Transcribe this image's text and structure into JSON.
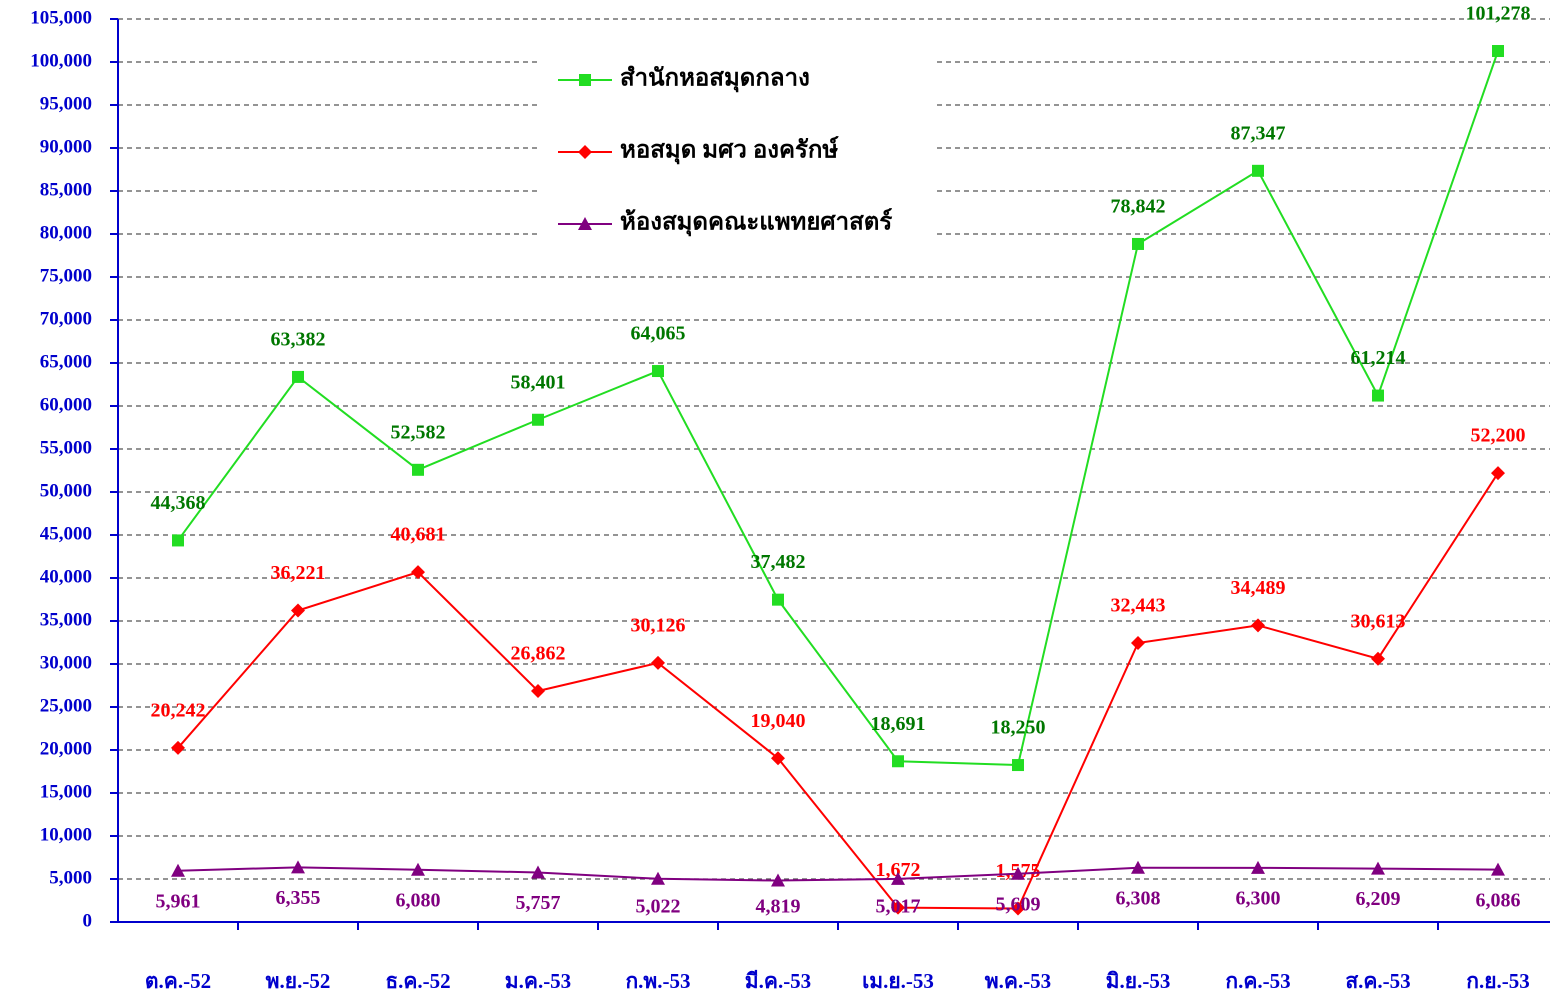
{
  "chart_data": {
    "type": "line",
    "categories": [
      "ต.ค.-52",
      "พ.ย.-52",
      "ธ.ค.-52",
      "ม.ค.-53",
      "ก.พ.-53",
      "มี.ค.-53",
      "เม.ย.-53",
      "พ.ค.-53",
      "มิ.ย.-53",
      "ก.ค.-53",
      "ส.ค.-53",
      "ก.ย.-53"
    ],
    "series": [
      {
        "name": "สำนักหอสมุดกลาง",
        "color": "#22dd22",
        "label_color": "#007700",
        "marker": "square",
        "values": [
          44368,
          63382,
          52582,
          58401,
          64065,
          37482,
          18691,
          18250,
          78842,
          87347,
          61214,
          101278
        ],
        "value_labels": [
          "44,368",
          "63,382",
          "52,582",
          "58,401",
          "64,065",
          "37,482",
          "18,691",
          "18,250",
          "78,842",
          "87,347",
          "61,214",
          "101,278"
        ]
      },
      {
        "name": "หอสมุด มศว  องครักษ์",
        "color": "#ff0000",
        "label_color": "#ff0000",
        "marker": "diamond",
        "values": [
          20242,
          36221,
          40681,
          26862,
          30126,
          19040,
          1672,
          1575,
          32443,
          34489,
          30613,
          52200
        ],
        "value_labels": [
          "20,242",
          "36,221",
          "40,681",
          "26,862",
          "30,126",
          "19,040",
          "1,672",
          "1,575",
          "32,443",
          "34,489",
          "30,613",
          "52,200"
        ]
      },
      {
        "name": "ห้องสมุดคณะแพทยศาสตร์",
        "color": "#800080",
        "label_color": "#800080",
        "marker": "triangle",
        "values": [
          5961,
          6355,
          6080,
          5757,
          5022,
          4819,
          5017,
          5609,
          6308,
          6300,
          6209,
          6086
        ],
        "value_labels": [
          "5,961",
          "6,355",
          "6,080",
          "5,757",
          "5,022",
          "4,819",
          "5,017",
          "5,609",
          "6,308",
          "6,300",
          "6,209",
          "6,086"
        ]
      }
    ],
    "ylim": [
      0,
      105000
    ],
    "yticks": [
      0,
      {
        "value": 5000,
        "label": "5,000"
      },
      {
        "value": 10000,
        "label": "10,000"
      },
      {
        "value": 15000,
        "label": "15,000"
      },
      {
        "value": 20000,
        "label": "20,000"
      },
      {
        "value": 25000,
        "label": "25,000"
      },
      {
        "value": 30000,
        "label": "30,000"
      },
      {
        "value": 35000,
        "label": "35,000"
      },
      {
        "value": 40000,
        "label": "40,000"
      },
      {
        "value": 45000,
        "label": "45,000"
      },
      {
        "value": 50000,
        "label": "50,000"
      },
      {
        "value": 55000,
        "label": "55,000"
      },
      {
        "value": 60000,
        "label": "60,000"
      },
      {
        "value": 65000,
        "label": "65,000"
      },
      {
        "value": 70000,
        "label": "70,000"
      },
      {
        "value": 75000,
        "label": "75,000"
      },
      {
        "value": 80000,
        "label": "80,000"
      },
      {
        "value": 85000,
        "label": "85,000"
      },
      {
        "value": 90000,
        "label": "90,000"
      },
      {
        "value": 95000,
        "label": "95,000"
      },
      {
        "value": 100000,
        "label": "100,000"
      },
      {
        "value": 105000,
        "label": "105,000"
      }
    ],
    "grid": true,
    "axis_color": "#0000cc"
  }
}
